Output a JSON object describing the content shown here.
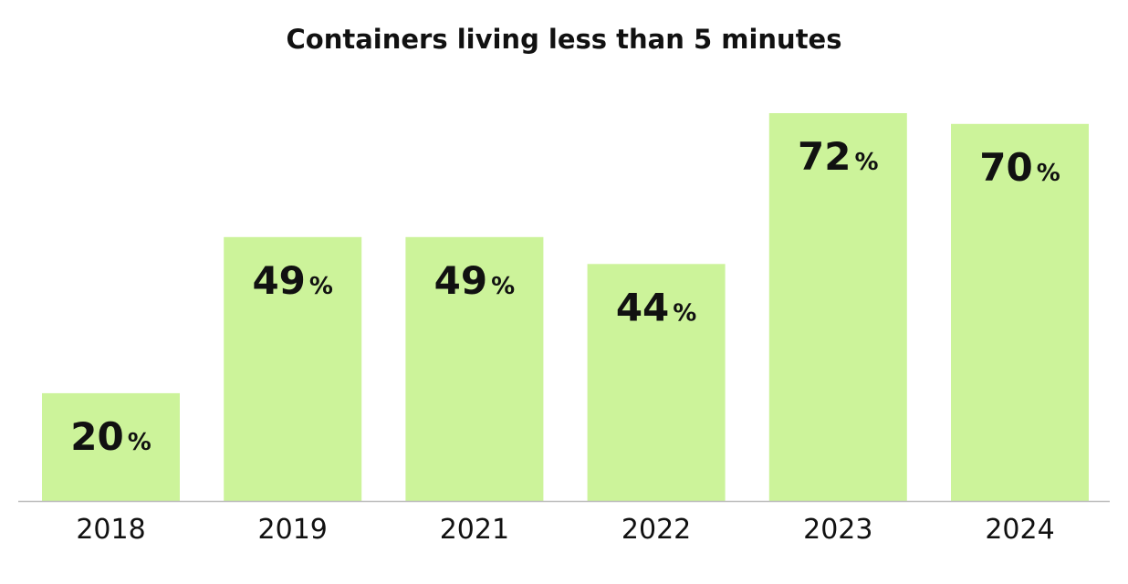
{
  "chart_data": {
    "type": "bar",
    "title": "Containers living less than 5 minutes",
    "categories": [
      "2018",
      "2019",
      "2021",
      "2022",
      "2023",
      "2024"
    ],
    "values": [
      20,
      49,
      49,
      44,
      72,
      70
    ],
    "value_suffix": "%",
    "xlabel": "",
    "ylabel": "",
    "ylim": [
      0,
      72
    ],
    "grid": false,
    "legend": "none",
    "colors": {
      "bar": "#ccf39a",
      "text": "#111111",
      "axis": "#bbbbbb"
    }
  }
}
